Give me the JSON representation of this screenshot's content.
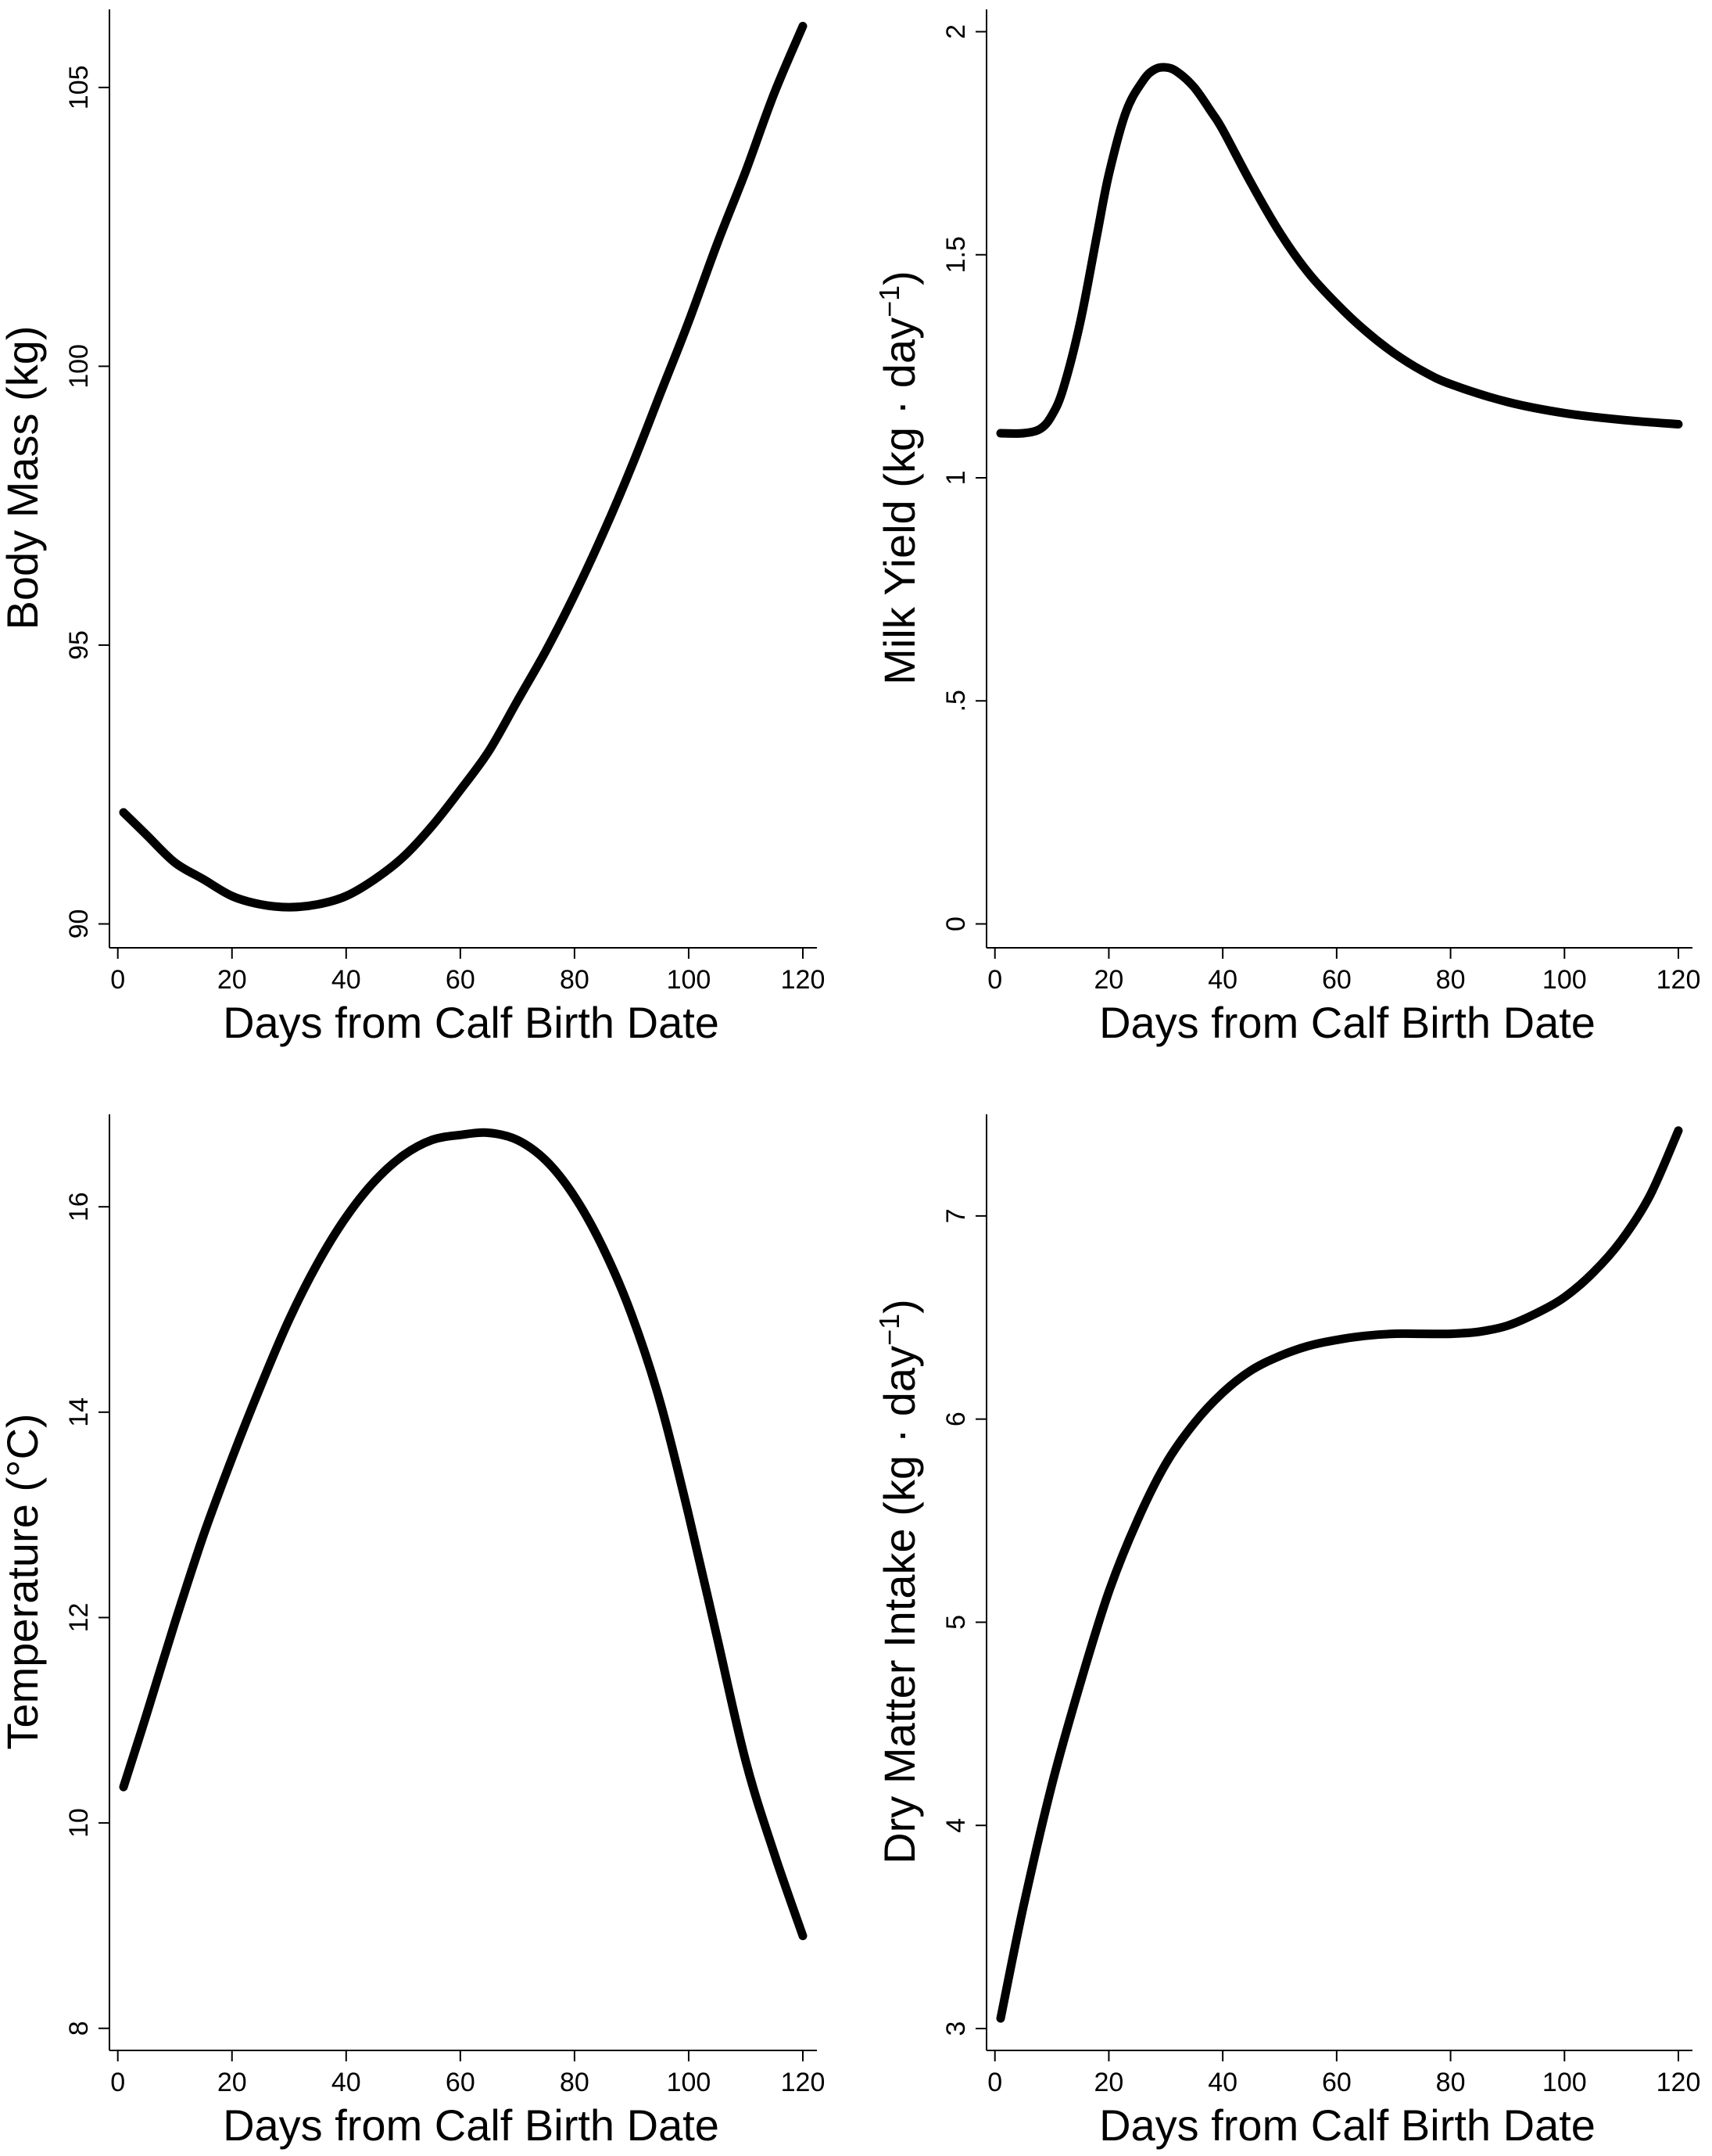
{
  "chart_data": [
    {
      "type": "line",
      "xlabel": "Days from Calf Birth Date",
      "ylabel": "Body Mass (kg)",
      "ylabel_main": "Body Mass (kg)",
      "ylabel_sup": "",
      "ylabel_tail": "",
      "xlim": [
        1,
        120
      ],
      "ylim": [
        89.6,
        106.4
      ],
      "xticks": [
        0,
        20,
        40,
        60,
        80,
        100,
        120
      ],
      "xtick_labels": [
        "0",
        "20",
        "40",
        "60",
        "80",
        "100",
        "120"
      ],
      "yticks": [
        90,
        95,
        100,
        105
      ],
      "ytick_labels": [
        "90",
        "95",
        "100",
        "105"
      ],
      "x": [
        1,
        5,
        10,
        15,
        20,
        25,
        30,
        35,
        40,
        45,
        50,
        55,
        60,
        65,
        70,
        75,
        80,
        85,
        90,
        95,
        100,
        105,
        110,
        115,
        120
      ],
      "y": [
        92.0,
        91.6,
        91.1,
        90.8,
        90.5,
        90.35,
        90.3,
        90.35,
        90.5,
        90.8,
        91.2,
        91.75,
        92.4,
        93.1,
        94.0,
        94.9,
        95.9,
        97.0,
        98.2,
        99.5,
        100.8,
        102.2,
        103.5,
        104.9,
        106.1
      ]
    },
    {
      "type": "line",
      "xlabel": "Days from Calf Birth Date",
      "ylabel": "Milk Yield (kg · day-1)",
      "ylabel_main": "Milk Yield (kg · day",
      "ylabel_sup": "−1",
      "ylabel_tail": ")",
      "xlim": [
        1,
        120
      ],
      "ylim": [
        -0.05,
        2.05
      ],
      "xticks": [
        0,
        20,
        40,
        60,
        80,
        100,
        120
      ],
      "xtick_labels": [
        "0",
        "20",
        "40",
        "60",
        "80",
        "100",
        "120"
      ],
      "yticks": [
        0,
        0.5,
        1,
        1.5,
        2
      ],
      "ytick_labels": [
        "0",
        ".5",
        "1",
        "1.5",
        "2"
      ],
      "x": [
        1,
        5,
        8,
        10,
        12,
        15,
        18,
        20,
        23,
        26,
        28,
        30,
        32,
        35,
        38,
        40,
        45,
        50,
        55,
        60,
        65,
        70,
        75,
        80,
        90,
        100,
        110,
        120
      ],
      "y": [
        1.1,
        1.1,
        1.11,
        1.14,
        1.2,
        1.35,
        1.55,
        1.68,
        1.82,
        1.89,
        1.915,
        1.92,
        1.91,
        1.875,
        1.82,
        1.78,
        1.66,
        1.55,
        1.46,
        1.39,
        1.33,
        1.28,
        1.24,
        1.21,
        1.17,
        1.145,
        1.13,
        1.12
      ]
    },
    {
      "type": "line",
      "xlabel": "Days from Calf Birth Date",
      "ylabel": "Temperature (°C)",
      "ylabel_main": "Temperature (°C)",
      "ylabel_sup": "",
      "ylabel_tail": "",
      "xlim": [
        1,
        120
      ],
      "ylim": [
        7.8,
        16.9
      ],
      "xticks": [
        0,
        20,
        40,
        60,
        80,
        100,
        120
      ],
      "xtick_labels": [
        "0",
        "20",
        "40",
        "60",
        "80",
        "100",
        "120"
      ],
      "yticks": [
        8,
        10,
        12,
        14,
        16
      ],
      "ytick_labels": [
        "8",
        "10",
        "12",
        "14",
        "16"
      ],
      "x": [
        1,
        5,
        10,
        15,
        20,
        25,
        30,
        35,
        40,
        45,
        50,
        55,
        60,
        65,
        70,
        75,
        80,
        85,
        90,
        95,
        100,
        105,
        110,
        115,
        120
      ],
      "y": [
        10.35,
        11.05,
        11.95,
        12.8,
        13.55,
        14.25,
        14.9,
        15.45,
        15.9,
        16.25,
        16.5,
        16.65,
        16.7,
        16.72,
        16.65,
        16.45,
        16.1,
        15.6,
        14.95,
        14.1,
        13.0,
        11.8,
        10.6,
        9.7,
        8.9
      ]
    },
    {
      "type": "line",
      "xlabel": "Days from Calf Birth Date",
      "ylabel": "Dry Matter Intake (kg · day-1)",
      "ylabel_main": "Dry Matter Intake (kg · day",
      "ylabel_sup": "−1",
      "ylabel_tail": ")",
      "xlim": [
        1,
        120
      ],
      "ylim": [
        2.9,
        7.5
      ],
      "xticks": [
        0,
        20,
        40,
        60,
        80,
        100,
        120
      ],
      "xtick_labels": [
        "0",
        "20",
        "40",
        "60",
        "80",
        "100",
        "120"
      ],
      "yticks": [
        3,
        4,
        5,
        6,
        7
      ],
      "ytick_labels": [
        "3",
        "4",
        "5",
        "6",
        "7"
      ],
      "x": [
        1,
        5,
        10,
        15,
        20,
        25,
        30,
        35,
        40,
        45,
        50,
        55,
        60,
        65,
        70,
        75,
        80,
        85,
        90,
        95,
        100,
        105,
        110,
        115,
        120
      ],
      "y": [
        3.05,
        3.6,
        4.2,
        4.7,
        5.15,
        5.5,
        5.78,
        5.98,
        6.13,
        6.24,
        6.31,
        6.36,
        6.39,
        6.41,
        6.42,
        6.42,
        6.42,
        6.43,
        6.46,
        6.52,
        6.6,
        6.72,
        6.88,
        7.1,
        7.42
      ]
    }
  ]
}
